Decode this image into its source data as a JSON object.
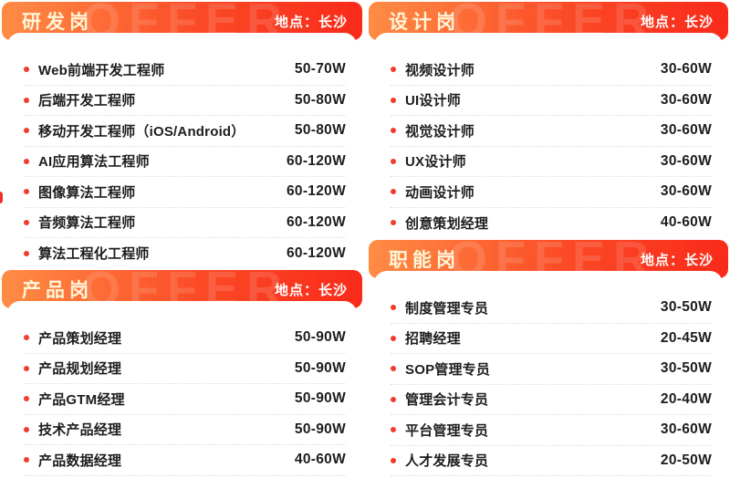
{
  "colors": {
    "header_gradient_start": "#FF8C45",
    "header_gradient_end": "#F92A1A",
    "title_color": "#FFF6D8",
    "location_color": "#FFFFFF",
    "bullet_color": "#F23B2E",
    "text_color": "#1D1D1F",
    "divider_color": "#ECD8D2"
  },
  "sections": [
    {
      "title": "研发岗",
      "location_label": "地点：长沙",
      "watermark": "OFFER",
      "jobs": [
        {
          "title": "Web前端开发工程师",
          "salary": "50-70W"
        },
        {
          "title": "后端开发工程师",
          "salary": "50-80W"
        },
        {
          "title": "移动开发工程师（iOS/Android）",
          "salary": "50-80W"
        },
        {
          "title": "AI应用算法工程师",
          "salary": "60-120W"
        },
        {
          "title": "图像算法工程师",
          "salary": "60-120W"
        },
        {
          "title": "音频算法工程师",
          "salary": "60-120W"
        },
        {
          "title": "算法工程化工程师",
          "salary": "60-120W"
        }
      ]
    },
    {
      "title": "产品岗",
      "location_label": "地点：长沙",
      "watermark": "OFFER",
      "jobs": [
        {
          "title": "产品策划经理",
          "salary": "50-90W"
        },
        {
          "title": "产品规划经理",
          "salary": "50-90W"
        },
        {
          "title": "产品GTM经理",
          "salary": "50-90W"
        },
        {
          "title": "技术产品经理",
          "salary": "50-90W"
        },
        {
          "title": "产品数据经理",
          "salary": "40-60W"
        }
      ]
    },
    {
      "title": "设计岗",
      "location_label": "地点：长沙",
      "watermark": "OFFER",
      "jobs": [
        {
          "title": "视频设计师",
          "salary": "30-60W"
        },
        {
          "title": "UI设计师",
          "salary": "30-60W"
        },
        {
          "title": "视觉设计师",
          "salary": "30-60W"
        },
        {
          "title": "UX设计师",
          "salary": "30-60W"
        },
        {
          "title": "动画设计师",
          "salary": "30-60W"
        },
        {
          "title": "创意策划经理",
          "salary": "40-60W"
        }
      ]
    },
    {
      "title": "职能岗",
      "location_label": "地点：长沙",
      "watermark": "OFFER",
      "jobs": [
        {
          "title": "制度管理专员",
          "salary": "30-50W"
        },
        {
          "title": "招聘经理",
          "salary": "20-45W"
        },
        {
          "title": "SOP管理专员",
          "salary": "30-50W"
        },
        {
          "title": "管理会计专员",
          "salary": "20-40W"
        },
        {
          "title": "平台管理专员",
          "salary": "30-60W"
        },
        {
          "title": "人才发展专员",
          "salary": "20-50W"
        }
      ]
    }
  ]
}
